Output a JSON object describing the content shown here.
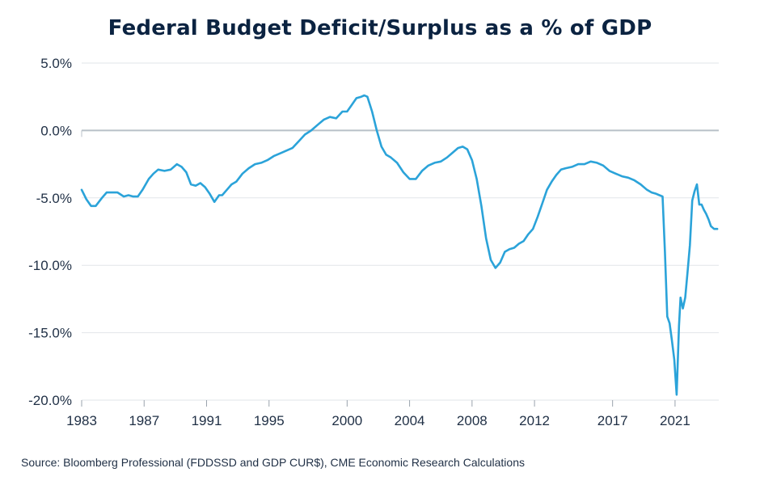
{
  "chart_data": {
    "type": "line",
    "title": "Federal Budget Deficit/Surplus as a % of GDP",
    "source": "Source: Bloomberg Professional (FDDSSD and GDP CUR$), CME Economic Research Calculations",
    "xlabel": "",
    "ylabel": "",
    "xlim": [
      1983,
      2023.8
    ],
    "ylim": [
      -20,
      5
    ],
    "x_ticks": [
      1983,
      1987,
      1991,
      1995,
      2000,
      2004,
      2008,
      2012,
      2017,
      2021
    ],
    "x_tick_labels": [
      "1983",
      "1987",
      "1991",
      "1995",
      "2000",
      "2004",
      "2008",
      "2012",
      "2017",
      "2021"
    ],
    "y_ticks": [
      5,
      0,
      -5,
      -10,
      -15,
      -20
    ],
    "y_tick_labels": [
      "5.0%",
      "0.0%",
      "-5.0%",
      "-10.0%",
      "-15.0%",
      "-20.0%"
    ],
    "grid": true,
    "zero_line": true,
    "colors": {
      "line": "#2ba3d9",
      "grid": "#e2e5e9",
      "zero": "#b8c0c8",
      "text": "#1f2f45",
      "title": "#0b2341"
    },
    "series": [
      {
        "x": [
          1983.0,
          1983.3,
          1983.6,
          1983.9,
          1984.3,
          1984.6,
          1985.0,
          1985.3,
          1985.7,
          1986.0,
          1986.3,
          1986.6,
          1986.9,
          1987.3,
          1987.6,
          1987.9,
          1988.3,
          1988.7,
          1989.1,
          1989.4,
          1989.7,
          1990.0,
          1990.3,
          1990.6,
          1990.9,
          1991.2,
          1991.5,
          1991.8,
          1992.0,
          1992.3,
          1992.6,
          1992.9,
          1993.3,
          1993.7,
          1994.1,
          1994.5,
          1994.9,
          1995.3,
          1995.7,
          1996.1,
          1996.5,
          1996.9,
          1997.3,
          1997.7,
          1998.1,
          1998.5,
          1998.9,
          1999.3,
          1999.7,
          2000.0,
          2000.3,
          2000.6,
          2000.9,
          2001.1,
          2001.3,
          2001.6,
          2001.9,
          2002.2,
          2002.5,
          2002.8,
          2003.2,
          2003.6,
          2004.0,
          2004.4,
          2004.8,
          2005.2,
          2005.6,
          2006.0,
          2006.4,
          2006.8,
          2007.1,
          2007.4,
          2007.7,
          2008.0,
          2008.3,
          2008.6,
          2008.9,
          2009.2,
          2009.5,
          2009.8,
          2010.1,
          2010.4,
          2010.7,
          2011.0,
          2011.3,
          2011.6,
          2011.9,
          2012.2,
          2012.5,
          2012.8,
          2013.1,
          2013.4,
          2013.7,
          2014.0,
          2014.4,
          2014.8,
          2015.2,
          2015.6,
          2016.0,
          2016.4,
          2016.8,
          2017.2,
          2017.6,
          2018.0,
          2018.4,
          2018.8,
          2019.2,
          2019.5,
          2019.8,
          2020.0,
          2020.2,
          2020.35,
          2020.5,
          2020.65,
          2020.8,
          2020.95,
          2021.1,
          2021.25,
          2021.35,
          2021.5,
          2021.65,
          2021.8,
          2021.95,
          2022.1,
          2022.25,
          2022.4,
          2022.55,
          2022.7,
          2022.85,
          2023.0,
          2023.15,
          2023.3,
          2023.5,
          2023.7
        ],
        "y": [
          -4.4,
          -5.1,
          -5.6,
          -5.6,
          -5.0,
          -4.6,
          -4.6,
          -4.6,
          -4.9,
          -4.8,
          -4.9,
          -4.9,
          -4.4,
          -3.6,
          -3.2,
          -2.9,
          -3.0,
          -2.9,
          -2.5,
          -2.7,
          -3.1,
          -4.0,
          -4.1,
          -3.9,
          -4.2,
          -4.7,
          -5.3,
          -4.8,
          -4.8,
          -4.4,
          -4.0,
          -3.8,
          -3.2,
          -2.8,
          -2.5,
          -2.4,
          -2.2,
          -1.9,
          -1.7,
          -1.5,
          -1.3,
          -0.8,
          -0.3,
          0.0,
          0.4,
          0.8,
          1.0,
          0.9,
          1.4,
          1.4,
          1.9,
          2.4,
          2.5,
          2.6,
          2.5,
          1.4,
          0.0,
          -1.2,
          -1.8,
          -2.0,
          -2.4,
          -3.1,
          -3.6,
          -3.6,
          -3.0,
          -2.6,
          -2.4,
          -2.3,
          -2.0,
          -1.6,
          -1.3,
          -1.2,
          -1.4,
          -2.2,
          -3.6,
          -5.6,
          -8.0,
          -9.6,
          -10.2,
          -9.8,
          -9.0,
          -8.8,
          -8.7,
          -8.4,
          -8.2,
          -7.7,
          -7.3,
          -6.4,
          -5.4,
          -4.4,
          -3.8,
          -3.3,
          -2.9,
          -2.8,
          -2.7,
          -2.5,
          -2.5,
          -2.3,
          -2.4,
          -2.6,
          -3.0,
          -3.2,
          -3.4,
          -3.5,
          -3.7,
          -4.0,
          -4.4,
          -4.6,
          -4.7,
          -4.8,
          -4.9,
          -9.0,
          -13.8,
          -14.3,
          -15.6,
          -17.0,
          -19.6,
          -14.5,
          -12.4,
          -13.2,
          -12.4,
          -10.5,
          -8.5,
          -5.2,
          -4.5,
          -4.0,
          -5.5,
          -5.5,
          -5.9,
          -6.2,
          -6.6,
          -7.1,
          -7.3,
          -7.3
        ]
      }
    ]
  }
}
